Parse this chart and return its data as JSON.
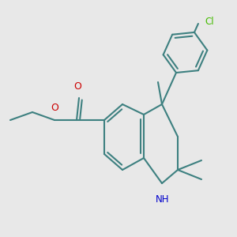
{
  "background_color": "#e8e8e8",
  "bond_color": "#3d8080",
  "o_color": "#cc0000",
  "n_color": "#0000cc",
  "cl_color": "#44bb00",
  "lw": 1.5,
  "figsize": [
    3.0,
    3.0
  ],
  "dpi": 100,
  "xlim": [
    0,
    300
  ],
  "ylim": [
    0,
    300
  ]
}
